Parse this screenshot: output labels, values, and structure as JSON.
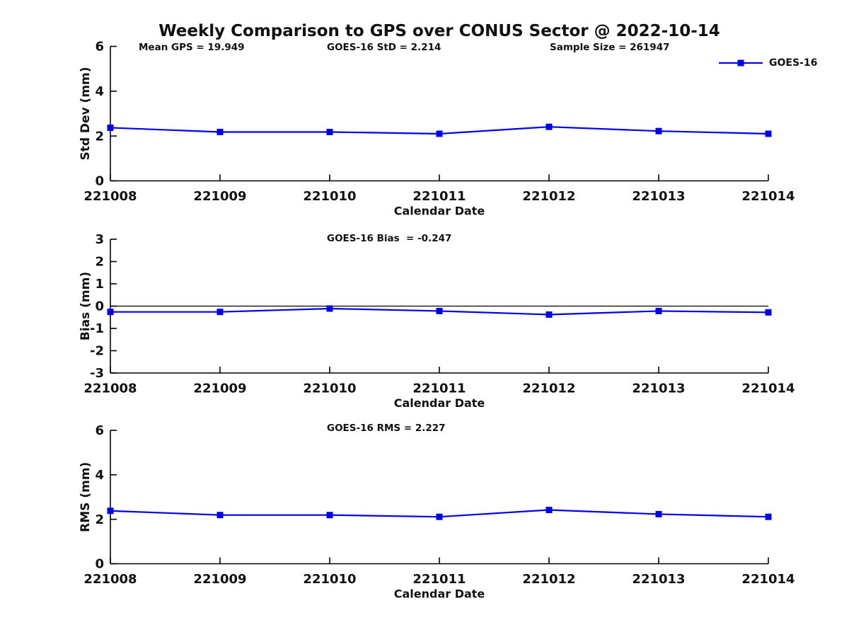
{
  "title": "Weekly Comparison to GPS over CONUS Sector @ 2022-10-14",
  "annotations": {
    "mean_gps": "Mean GPS = 19.949",
    "goes_std": "GOES-16 StD = 2.214",
    "sample_size": "Sample Size = 261947",
    "goes_bias": "GOES-16 Bias  = -0.247",
    "goes_rms": "GOES-16 RMS = 2.227"
  },
  "legend": {
    "label": "GOES-16",
    "position": "top-right"
  },
  "colors": {
    "series_line": "#0000ee",
    "axis": "#000000",
    "text": "#111111",
    "background": "#ffffff"
  },
  "chart_data": [
    {
      "type": "line",
      "name": "std-dev",
      "categories": [
        "221008",
        "221009",
        "221010",
        "221011",
        "221012",
        "221013",
        "221014"
      ],
      "series": [
        {
          "name": "GOES-16",
          "values": [
            2.37,
            2.18,
            2.18,
            2.1,
            2.41,
            2.22,
            2.1
          ]
        }
      ],
      "xlabel": "Calendar Date",
      "ylabel": "Std Dev (mm)",
      "ylim": [
        0,
        6
      ],
      "yticks": [
        0,
        2,
        4,
        6
      ],
      "zero_line": false,
      "grid": false,
      "marker": "square"
    },
    {
      "type": "line",
      "name": "bias",
      "categories": [
        "221008",
        "221009",
        "221010",
        "221011",
        "221012",
        "221013",
        "221014"
      ],
      "series": [
        {
          "name": "GOES-16",
          "values": [
            -0.26,
            -0.26,
            -0.11,
            -0.22,
            -0.38,
            -0.22,
            -0.28
          ]
        }
      ],
      "xlabel": "Calendar Date",
      "ylabel": "Bias (mm)",
      "ylim": [
        -3,
        3
      ],
      "yticks": [
        -3,
        -2,
        -1,
        0,
        1,
        2,
        3
      ],
      "zero_line": true,
      "grid": false,
      "marker": "square"
    },
    {
      "type": "line",
      "name": "rms",
      "categories": [
        "221008",
        "221009",
        "221010",
        "221011",
        "221012",
        "221013",
        "221014"
      ],
      "series": [
        {
          "name": "GOES-16",
          "values": [
            2.38,
            2.19,
            2.19,
            2.11,
            2.42,
            2.23,
            2.11
          ]
        }
      ],
      "xlabel": "Calendar Date",
      "ylabel": "RMS (mm)",
      "ylim": [
        0,
        6
      ],
      "yticks": [
        0,
        2,
        4,
        6
      ],
      "zero_line": false,
      "grid": false,
      "marker": "square"
    }
  ]
}
